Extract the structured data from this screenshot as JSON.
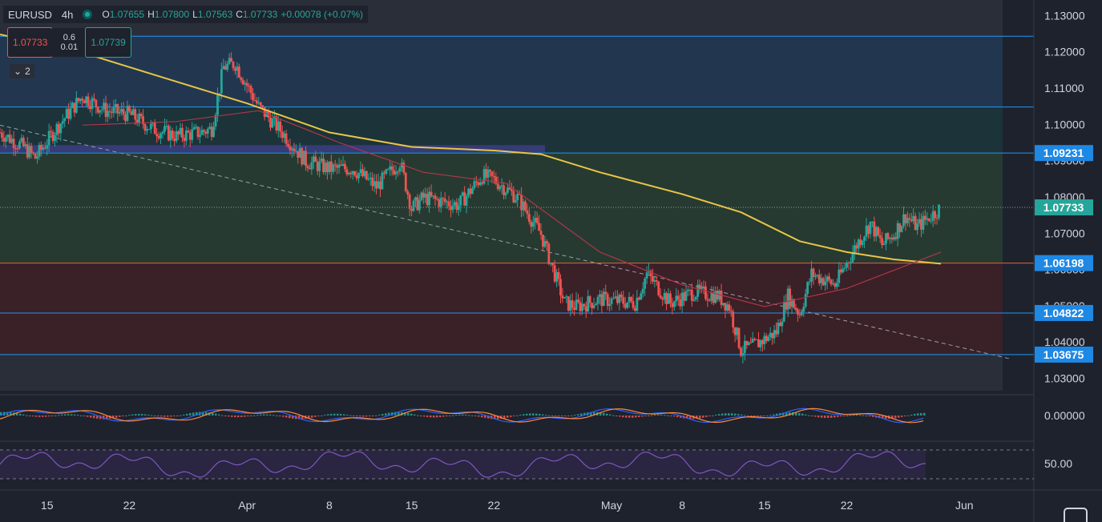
{
  "header": {
    "symbol": "EURUSD",
    "timeframe": "4h",
    "ohlc": [
      {
        "k": "O",
        "v": "1.07655"
      },
      {
        "k": "H",
        "v": "1.07800"
      },
      {
        "k": "L",
        "v": "1.07563"
      },
      {
        "k": "C",
        "v": "1.07733"
      },
      {
        "k": "",
        "v": "+0.00078 (+0.07%)"
      }
    ]
  },
  "trade": {
    "sell": "1.07733",
    "spread_top": "0.6",
    "spread_bottom": "0.01",
    "buy": "1.07739"
  },
  "indicator_toggle": "2",
  "colors": {
    "background": "#1e222d",
    "up": "#26a69a",
    "down": "#ef5350",
    "ma_long": "#e8c547",
    "ma_short": "#b0364a",
    "macd": "#2962ff",
    "signal": "#ff8a3d",
    "rsi": "#7e57c2",
    "level_line": "#2196f3",
    "tag_fill": "#1e88e5",
    "last_tag": "#26a69a"
  },
  "chart_data": {
    "type": "candlestick",
    "price_axis": {
      "ylim": [
        1.0268,
        1.1345
      ],
      "ticks": [
        "1.13000",
        "1.12000",
        "1.11000",
        "1.10000",
        "1.09000",
        "1.08000",
        "1.07000",
        "1.06000",
        "1.05000",
        "1.04000",
        "1.03000"
      ]
    },
    "time_axis": {
      "range": [
        "2022-03-11",
        "2022-06-05"
      ],
      "ticks": [
        {
          "label": "15",
          "date": "2022-03-15"
        },
        {
          "label": "22",
          "date": "2022-03-22"
        },
        {
          "label": "Apr",
          "date": "2022-04-01"
        },
        {
          "label": "8",
          "date": "2022-04-08"
        },
        {
          "label": "15",
          "date": "2022-04-15"
        },
        {
          "label": "22",
          "date": "2022-04-22"
        },
        {
          "label": "May",
          "date": "2022-05-02"
        },
        {
          "label": "8",
          "date": "2022-05-08"
        },
        {
          "label": "15",
          "date": "2022-05-15"
        },
        {
          "label": "22",
          "date": "2022-05-22"
        },
        {
          "label": "Jun",
          "date": "2022-06-01"
        }
      ]
    },
    "price_path": [
      {
        "date": "2022-03-11",
        "close": 1.098
      },
      {
        "date": "2022-03-13",
        "close": 1.094
      },
      {
        "date": "2022-03-14",
        "close": 1.091
      },
      {
        "date": "2022-03-16",
        "close": 1.1
      },
      {
        "date": "2022-03-18",
        "close": 1.108
      },
      {
        "date": "2022-03-20",
        "close": 1.104
      },
      {
        "date": "2022-03-22",
        "close": 1.103
      },
      {
        "date": "2022-03-24",
        "close": 1.099
      },
      {
        "date": "2022-03-26",
        "close": 1.097
      },
      {
        "date": "2022-03-28",
        "close": 1.098
      },
      {
        "date": "2022-03-29",
        "close": 1.099
      },
      {
        "date": "2022-03-30",
        "close": 1.116
      },
      {
        "date": "2022-03-31",
        "close": 1.117
      },
      {
        "date": "2022-04-02",
        "close": 1.105
      },
      {
        "date": "2022-04-04",
        "close": 1.098
      },
      {
        "date": "2022-04-06",
        "close": 1.09
      },
      {
        "date": "2022-04-08",
        "close": 1.088
      },
      {
        "date": "2022-04-10",
        "close": 1.088
      },
      {
        "date": "2022-04-12",
        "close": 1.083
      },
      {
        "date": "2022-04-14",
        "close": 1.09
      },
      {
        "date": "2022-04-15",
        "close": 1.077
      },
      {
        "date": "2022-04-16",
        "close": 1.08
      },
      {
        "date": "2022-04-19",
        "close": 1.078
      },
      {
        "date": "2022-04-21",
        "close": 1.086
      },
      {
        "date": "2022-04-22",
        "close": 1.085
      },
      {
        "date": "2022-04-24",
        "close": 1.08
      },
      {
        "date": "2022-04-26",
        "close": 1.07
      },
      {
        "date": "2022-04-28",
        "close": 1.051
      },
      {
        "date": "2022-04-29",
        "close": 1.05
      },
      {
        "date": "2022-05-01",
        "close": 1.052
      },
      {
        "date": "2022-05-04",
        "close": 1.051
      },
      {
        "date": "2022-05-05",
        "close": 1.059
      },
      {
        "date": "2022-05-07",
        "close": 1.051
      },
      {
        "date": "2022-05-09",
        "close": 1.054
      },
      {
        "date": "2022-05-11",
        "close": 1.053
      },
      {
        "date": "2022-05-12",
        "close": 1.05
      },
      {
        "date": "2022-05-13",
        "close": 1.038
      },
      {
        "date": "2022-05-14",
        "close": 1.039
      },
      {
        "date": "2022-05-16",
        "close": 1.043
      },
      {
        "date": "2022-05-17",
        "close": 1.053
      },
      {
        "date": "2022-05-18",
        "close": 1.048
      },
      {
        "date": "2022-05-19",
        "close": 1.059
      },
      {
        "date": "2022-05-21",
        "close": 1.056
      },
      {
        "date": "2022-05-23",
        "close": 1.068
      },
      {
        "date": "2022-05-24",
        "close": 1.073
      },
      {
        "date": "2022-05-25",
        "close": 1.067
      },
      {
        "date": "2022-05-26",
        "close": 1.07
      },
      {
        "date": "2022-05-27",
        "close": 1.075
      },
      {
        "date": "2022-05-28",
        "close": 1.072
      },
      {
        "date": "2022-05-30",
        "close": 1.0773
      }
    ],
    "ma_long": [
      {
        "date": "2022-03-11",
        "value": 1.125
      },
      {
        "date": "2022-03-18",
        "value": 1.12
      },
      {
        "date": "2022-03-25",
        "value": 1.113
      },
      {
        "date": "2022-04-01",
        "value": 1.106
      },
      {
        "date": "2022-04-08",
        "value": 1.098
      },
      {
        "date": "2022-04-15",
        "value": 1.094
      },
      {
        "date": "2022-04-22",
        "value": 1.093
      },
      {
        "date": "2022-04-26",
        "value": 1.092
      },
      {
        "date": "2022-05-01",
        "value": 1.087
      },
      {
        "date": "2022-05-08",
        "value": 1.081
      },
      {
        "date": "2022-05-13",
        "value": 1.076
      },
      {
        "date": "2022-05-18",
        "value": 1.068
      },
      {
        "date": "2022-05-22",
        "value": 1.065
      },
      {
        "date": "2022-05-26",
        "value": 1.063
      },
      {
        "date": "2022-05-30",
        "value": 1.0618
      }
    ],
    "ma_short": [
      {
        "date": "2022-03-18",
        "value": 1.1
      },
      {
        "date": "2022-03-26",
        "value": 1.101
      },
      {
        "date": "2022-04-02",
        "value": 1.104
      },
      {
        "date": "2022-04-09",
        "value": 1.095
      },
      {
        "date": "2022-04-16",
        "value": 1.087
      },
      {
        "date": "2022-04-23",
        "value": 1.084
      },
      {
        "date": "2022-05-01",
        "value": 1.065
      },
      {
        "date": "2022-05-08",
        "value": 1.056
      },
      {
        "date": "2022-05-15",
        "value": 1.05
      },
      {
        "date": "2022-05-22",
        "value": 1.055
      },
      {
        "date": "2022-05-30",
        "value": 1.065
      }
    ],
    "levels": [
      {
        "value": 1.1245,
        "label": ""
      },
      {
        "value": 1.105,
        "label": ""
      },
      {
        "value": 1.09231,
        "label": "1.09231"
      },
      {
        "value": 1.07733,
        "label": "1.07733",
        "last": true
      },
      {
        "value": 1.06198,
        "label": "1.06198"
      },
      {
        "value": 1.04822,
        "label": "1.04822"
      },
      {
        "value": 1.03675,
        "label": "1.03675"
      }
    ],
    "zones": [
      {
        "from": 1.105,
        "to": 1.1245,
        "color": "#22374f"
      },
      {
        "from": 1.09231,
        "to": 1.105,
        "color": "#1b3339"
      },
      {
        "from": 1.06198,
        "to": 1.09231,
        "color": "#263a31"
      },
      {
        "from": 1.03675,
        "to": 1.06198,
        "color": "#3a2027"
      }
    ],
    "trendline": {
      "start": {
        "date": "2022-03-11",
        "value": 1.1
      },
      "end": {
        "date": "2022-06-05",
        "value": 1.0355
      }
    },
    "macd": {
      "tick": "0.00000"
    },
    "rsi": {
      "tick": "50.00",
      "bands": [
        70,
        30
      ]
    }
  }
}
